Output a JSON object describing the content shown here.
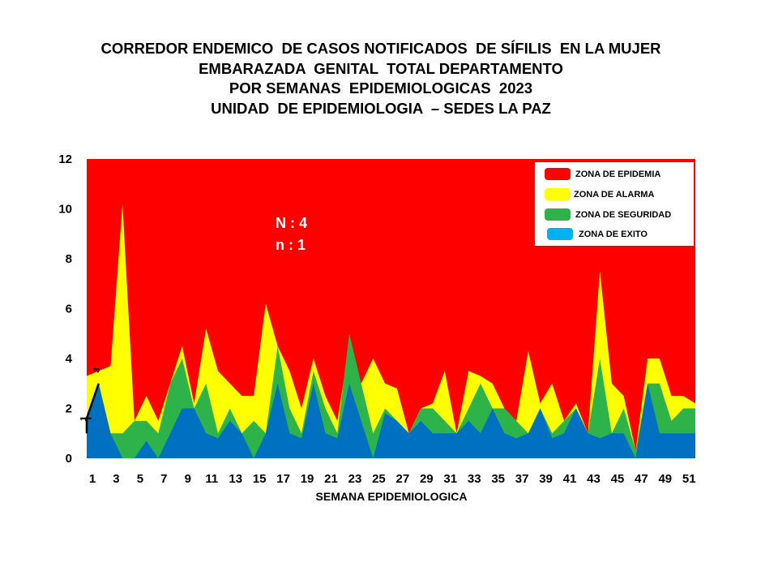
{
  "title_lines": [
    "CORREDOR ENDEMICO  DE CASOS NOTIFICADOS  DE SÍFILIS  EN LA MUJER",
    "EMBARAZADA  GENITAL  TOTAL DEPARTAMENTO",
    "POR SEMANAS  EPIDEMIOLOGICAS  2023",
    "UNIDAD  DE EPIDEMIOLOGIA  – SEDES LA PAZ"
  ],
  "chart_data": {
    "type": "area",
    "title": "CORREDOR ENDEMICO DE CASOS NOTIFICADOS DE SÍFILIS EN LA MUJER EMBARAZADA GENITAL TOTAL DEPARTAMENTO POR SEMANAS EPIDEMIOLOGICAS 2023",
    "xlabel": "SEMANA EPIDEMIOLOGICA",
    "ylabel": "",
    "xlim": [
      1,
      52
    ],
    "ylim": [
      0,
      12
    ],
    "x_ticks": [
      "1",
      "3",
      "5",
      "7",
      "9",
      "11",
      "13",
      "15",
      "17",
      "19",
      "21",
      "23",
      "25",
      "27",
      "29",
      "31",
      "33",
      "35",
      "37",
      "39",
      "41",
      "43",
      "45",
      "47",
      "49",
      "51"
    ],
    "y_ticks": [
      "0",
      "2",
      "4",
      "6",
      "8",
      "10",
      "12"
    ],
    "grid": false,
    "legend_position": "top-right",
    "series": [
      {
        "name": "ZONA DE EPIDEMIA",
        "color": "#ff0000",
        "values": [
          12,
          12,
          12,
          12,
          12,
          12,
          12,
          12,
          12,
          12,
          12,
          12,
          12,
          12,
          12,
          12,
          12,
          12,
          12,
          12,
          12,
          12,
          12,
          12,
          12,
          12,
          12,
          12,
          12,
          12,
          12,
          12,
          12,
          12,
          12,
          12,
          12,
          12,
          12,
          12,
          12,
          12,
          12,
          12,
          12,
          12,
          12,
          12,
          12,
          12,
          12,
          12
        ]
      },
      {
        "name": "ZONA DE ALARMA",
        "color": "#ffff00",
        "values": [
          3.3,
          3.5,
          3.7,
          10.2,
          1.5,
          2.5,
          1.5,
          3,
          4.5,
          2.2,
          5.2,
          3.5,
          3,
          2.5,
          2.5,
          6.2,
          4.5,
          3.5,
          2,
          4,
          2.5,
          1.5,
          4.5,
          3,
          4,
          3,
          2.8,
          1,
          2,
          2.2,
          3.5,
          1,
          3.5,
          3.3,
          3,
          2,
          1.5,
          4.3,
          2.2,
          3,
          1.5,
          2.2,
          1,
          7.5,
          3,
          2.5,
          0.3,
          4,
          4,
          2.5,
          2.5,
          2.2
        ]
      },
      {
        "name": "ZONA DE SEGURIDAD",
        "color": "#2db34a",
        "values": [
          1.5,
          3,
          1,
          1,
          1.5,
          1.5,
          1,
          3,
          4,
          2,
          3,
          1,
          2,
          1,
          1.5,
          1,
          4.5,
          2,
          1,
          3.5,
          2,
          1,
          5,
          3,
          1,
          2,
          1.5,
          1,
          2,
          2,
          1.5,
          1,
          2,
          3,
          2,
          2,
          1.5,
          1,
          2,
          1,
          1.5,
          2,
          1,
          4,
          1,
          2,
          0.3,
          3,
          3,
          1.5,
          2,
          2
        ]
      },
      {
        "name": "ZONA DE  EXITO",
        "color": "#0070c0",
        "values": [
          1.5,
          3,
          1,
          0,
          0,
          0.7,
          0,
          1,
          2,
          2,
          1,
          0.8,
          1.5,
          1,
          0,
          1,
          3,
          1,
          0.8,
          3,
          1,
          0.8,
          3,
          1.5,
          0,
          1.8,
          1.5,
          1,
          1.5,
          1,
          1,
          1,
          1.5,
          1,
          2,
          1,
          0.8,
          1,
          2,
          0.8,
          1,
          2,
          1,
          0.8,
          1,
          1,
          0,
          3,
          1,
          1,
          1,
          1
        ]
      }
    ],
    "observed": {
      "x": [
        1,
        1,
        2
      ],
      "y": [
        1,
        1.6,
        3
      ]
    },
    "annotations": [
      "N : 4",
      "n : 1"
    ],
    "point_labels": [
      "1",
      "3"
    ]
  },
  "colors": {
    "background": "#ffffff",
    "axis_text": "#000000",
    "observed_line": "#000000",
    "annotation_text": "#ffffff"
  }
}
